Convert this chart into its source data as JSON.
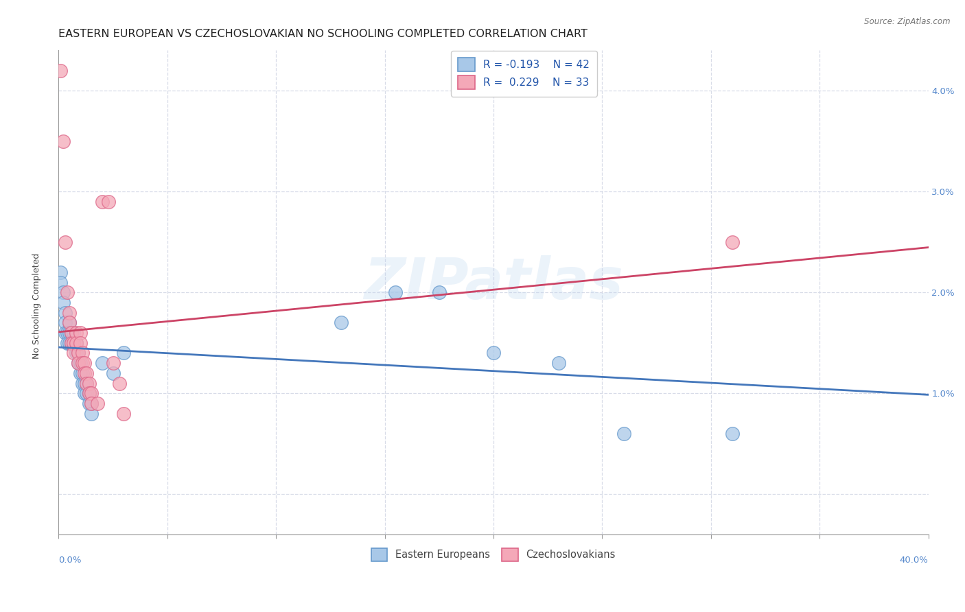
{
  "title": "EASTERN EUROPEAN VS CZECHOSLOVAKIAN NO SCHOOLING COMPLETED CORRELATION CHART",
  "source": "Source: ZipAtlas.com",
  "ylabel": "No Schooling Completed",
  "ytick_values": [
    0.0,
    0.01,
    0.02,
    0.03,
    0.04
  ],
  "ytick_labels": [
    "",
    "1.0%",
    "2.0%",
    "3.0%",
    "4.0%"
  ],
  "xlim": [
    0.0,
    0.4
  ],
  "ylim": [
    -0.004,
    0.044
  ],
  "watermark": "ZIPatlas",
  "legend_blue_r": "R = -0.193",
  "legend_blue_n": "N = 42",
  "legend_pink_r": "R =  0.229",
  "legend_pink_n": "N = 33",
  "blue_color": "#a8c8e8",
  "pink_color": "#f4a8b8",
  "blue_edge_color": "#6699cc",
  "pink_edge_color": "#dd6688",
  "blue_line_color": "#4477bb",
  "pink_line_color": "#cc4466",
  "blue_points": [
    [
      0.001,
      0.022
    ],
    [
      0.001,
      0.021
    ],
    [
      0.002,
      0.02
    ],
    [
      0.002,
      0.019
    ],
    [
      0.003,
      0.018
    ],
    [
      0.003,
      0.017
    ],
    [
      0.003,
      0.016
    ],
    [
      0.004,
      0.016
    ],
    [
      0.004,
      0.015
    ],
    [
      0.005,
      0.017
    ],
    [
      0.005,
      0.016
    ],
    [
      0.005,
      0.015
    ],
    [
      0.006,
      0.016
    ],
    [
      0.006,
      0.015
    ],
    [
      0.007,
      0.015
    ],
    [
      0.007,
      0.016
    ],
    [
      0.008,
      0.015
    ],
    [
      0.008,
      0.014
    ],
    [
      0.009,
      0.014
    ],
    [
      0.009,
      0.013
    ],
    [
      0.01,
      0.013
    ],
    [
      0.01,
      0.012
    ],
    [
      0.011,
      0.012
    ],
    [
      0.011,
      0.011
    ],
    [
      0.012,
      0.011
    ],
    [
      0.012,
      0.01
    ],
    [
      0.013,
      0.011
    ],
    [
      0.013,
      0.01
    ],
    [
      0.014,
      0.01
    ],
    [
      0.014,
      0.009
    ],
    [
      0.015,
      0.009
    ],
    [
      0.015,
      0.008
    ],
    [
      0.02,
      0.013
    ],
    [
      0.025,
      0.012
    ],
    [
      0.03,
      0.014
    ],
    [
      0.155,
      0.02
    ],
    [
      0.175,
      0.02
    ],
    [
      0.2,
      0.014
    ],
    [
      0.23,
      0.013
    ],
    [
      0.26,
      0.006
    ],
    [
      0.31,
      0.006
    ],
    [
      0.13,
      0.017
    ]
  ],
  "pink_points": [
    [
      0.001,
      0.042
    ],
    [
      0.002,
      0.035
    ],
    [
      0.003,
      0.025
    ],
    [
      0.004,
      0.02
    ],
    [
      0.005,
      0.018
    ],
    [
      0.005,
      0.017
    ],
    [
      0.006,
      0.016
    ],
    [
      0.006,
      0.015
    ],
    [
      0.007,
      0.015
    ],
    [
      0.007,
      0.014
    ],
    [
      0.008,
      0.016
    ],
    [
      0.008,
      0.015
    ],
    [
      0.009,
      0.014
    ],
    [
      0.009,
      0.013
    ],
    [
      0.01,
      0.016
    ],
    [
      0.01,
      0.015
    ],
    [
      0.011,
      0.014
    ],
    [
      0.011,
      0.013
    ],
    [
      0.012,
      0.013
    ],
    [
      0.012,
      0.012
    ],
    [
      0.013,
      0.012
    ],
    [
      0.013,
      0.011
    ],
    [
      0.014,
      0.011
    ],
    [
      0.014,
      0.01
    ],
    [
      0.015,
      0.01
    ],
    [
      0.015,
      0.009
    ],
    [
      0.018,
      0.009
    ],
    [
      0.02,
      0.029
    ],
    [
      0.023,
      0.029
    ],
    [
      0.025,
      0.013
    ],
    [
      0.028,
      0.011
    ],
    [
      0.03,
      0.008
    ],
    [
      0.31,
      0.025
    ]
  ],
  "background_color": "#ffffff",
  "grid_color": "#d8dce8",
  "title_fontsize": 11.5,
  "axis_label_fontsize": 9,
  "tick_fontsize": 9.5
}
